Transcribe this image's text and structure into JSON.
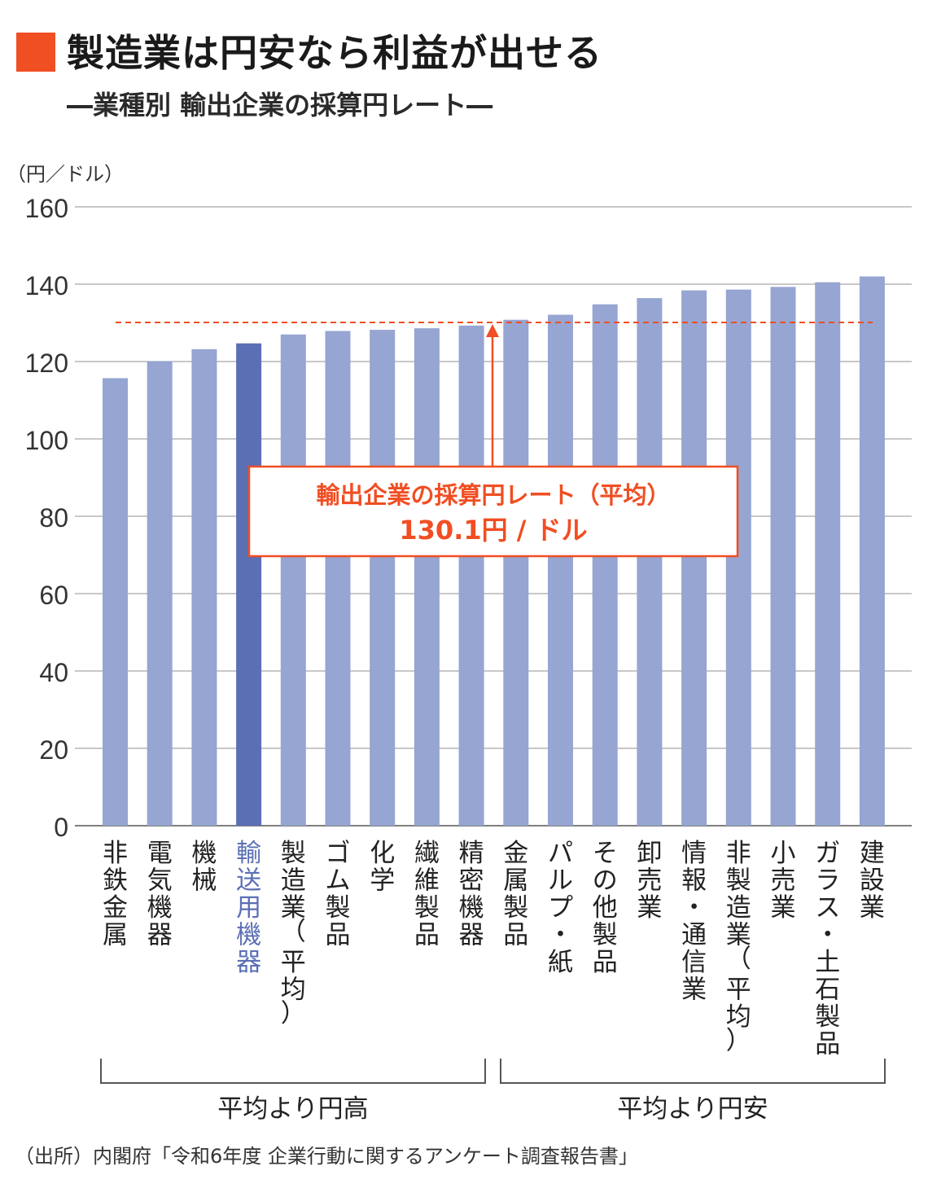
{
  "header": {
    "title": "製造業は円安なら利益が出せる",
    "subtitle": "―業種別 輸出企業の採算円レート―",
    "accent_color": "#f04e23"
  },
  "chart_data": {
    "type": "bar",
    "ylabel": "（円／ドル）",
    "ylim": [
      0,
      160
    ],
    "yticks": [
      0,
      20,
      40,
      60,
      80,
      100,
      120,
      140,
      160
    ],
    "grid": true,
    "categories": [
      "非鉄金属",
      "電気機器",
      "機械",
      "輸送用機器",
      "製造業（平均）",
      "ゴム製品",
      "化学",
      "繊維製品",
      "精密機器",
      "金属製品",
      "パルプ・紙",
      "その他製品",
      "卸売業",
      "情報・通信業",
      "非製造業（平均）",
      "小売業",
      "ガラス・土石製品",
      "建設業"
    ],
    "values": [
      115.7,
      120.1,
      123.2,
      124.7,
      127.0,
      127.9,
      128.2,
      128.6,
      129.3,
      130.8,
      132.1,
      134.8,
      136.4,
      138.4,
      138.6,
      139.3,
      140.5,
      142.0
    ],
    "highlight_category": "輸送用機器",
    "bar_color": "#96a5d1",
    "highlight_color": "#5b6fb5",
    "reference_line": {
      "value": 130.1,
      "label_line1": "輸出企業の採算円レート（平均）",
      "label_line2": "130.1円 / ドル",
      "color": "#f04e23"
    },
    "groups": [
      {
        "label": "平均より円高",
        "from": 0,
        "to": 8
      },
      {
        "label": "平均より円安",
        "from": 9,
        "to": 17
      }
    ]
  },
  "footer": {
    "source": "（出所）内閣府「令和6年度 企業行動に関するアンケート調査報告書」"
  }
}
